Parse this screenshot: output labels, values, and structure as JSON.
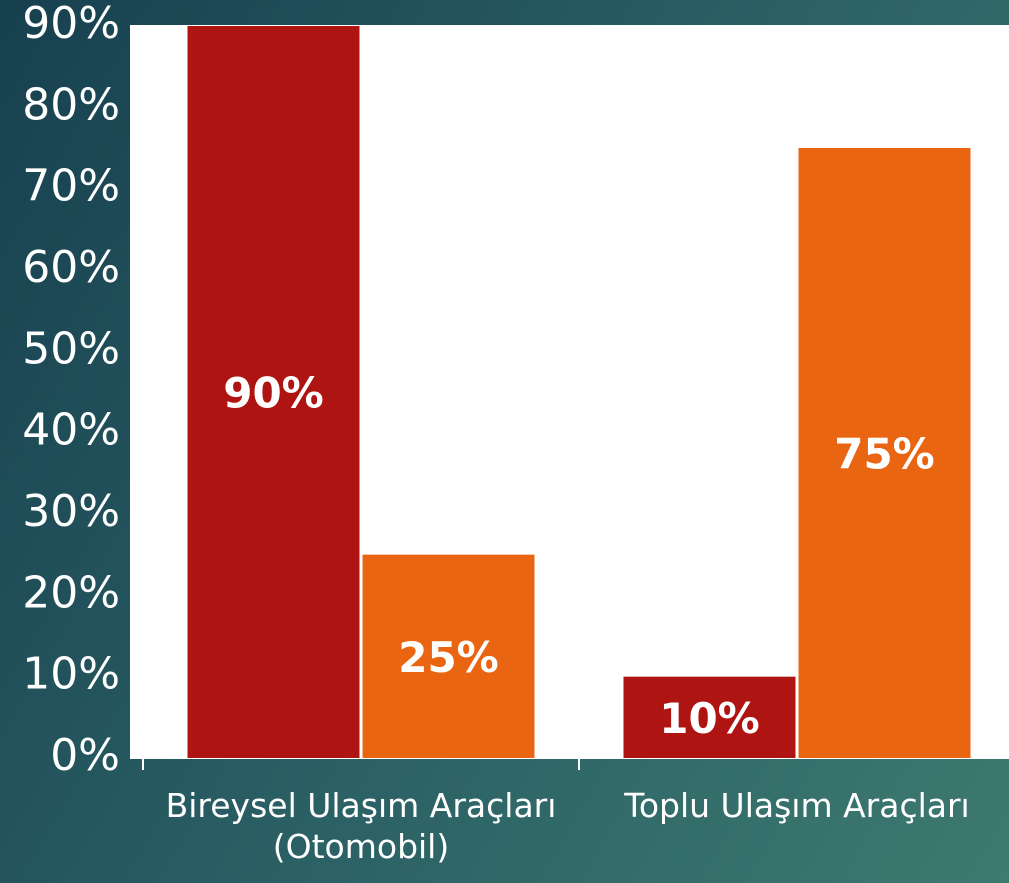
{
  "chart_data": {
    "type": "bar",
    "categories": [
      "Bireysel Ulaşım Araçları\n(Otomobil)",
      "Toplu Ulaşım Araçları"
    ],
    "series": [
      {
        "color": "#ae1512",
        "values": [
          90,
          10
        ],
        "value_labels": [
          "90%",
          "10%"
        ]
      },
      {
        "color": "#e96512",
        "values": [
          25,
          75
        ],
        "value_labels": [
          "25%",
          "75%"
        ]
      }
    ],
    "ylim": [
      0,
      90
    ],
    "yticks": [
      {
        "value": 0,
        "label": "0%"
      },
      {
        "value": 10,
        "label": "10%"
      },
      {
        "value": 20,
        "label": "20%"
      },
      {
        "value": 30,
        "label": "30%"
      },
      {
        "value": 40,
        "label": "40%"
      },
      {
        "value": 50,
        "label": "50%"
      },
      {
        "value": 60,
        "label": "60%"
      },
      {
        "value": 70,
        "label": "70%"
      },
      {
        "value": 80,
        "label": "80%"
      },
      {
        "value": 90,
        "label": "90%"
      }
    ]
  }
}
